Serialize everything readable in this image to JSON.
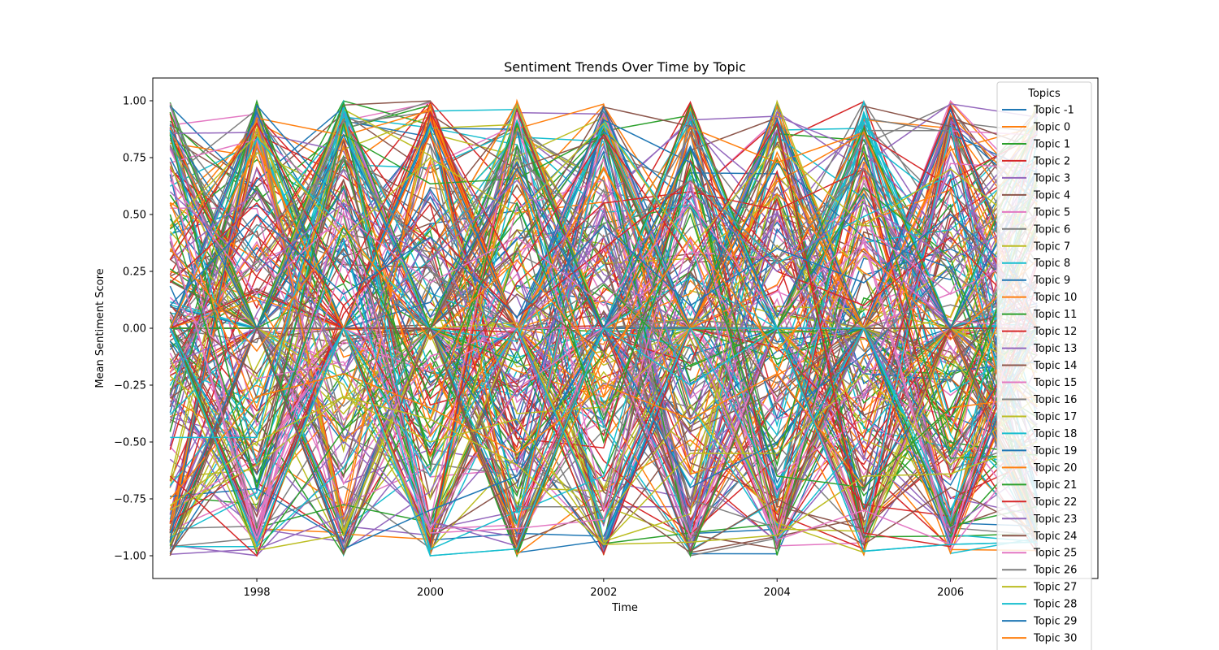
{
  "chart_data": {
    "type": "line",
    "title": "Sentiment Trends Over Time by Topic",
    "xlabel": "Time",
    "ylabel": "Mean Sentiment Score",
    "xlim": [
      1996.8,
      2007.7
    ],
    "ylim": [
      -1.1,
      1.1
    ],
    "x_ticks": [
      "1998",
      "2000",
      "2002",
      "2004",
      "2006"
    ],
    "y_ticks": [
      "1.00",
      "0.75",
      "0.50",
      "0.25",
      "0.00",
      "−0.25",
      "−0.50",
      "−0.75",
      "−1.00"
    ],
    "grid": false,
    "legend": {
      "title": "Topics",
      "placement": "top-right",
      "entries": [
        "Topic -1",
        "Topic 0",
        "Topic 1",
        "Topic 2",
        "Topic 3",
        "Topic 4",
        "Topic 5",
        "Topic 6",
        "Topic 7",
        "Topic 8",
        "Topic 9",
        "Topic 10",
        "Topic 11",
        "Topic 12",
        "Topic 13",
        "Topic 14",
        "Topic 15",
        "Topic 16",
        "Topic 17",
        "Topic 18",
        "Topic 19",
        "Topic 20",
        "Topic 21",
        "Topic 22",
        "Topic 23",
        "Topic 24",
        "Topic 25",
        "Topic 26",
        "Topic 27",
        "Topic 28",
        "Topic 29",
        "Topic 30"
      ]
    },
    "palette": [
      "#1f77b4",
      "#ff7f0e",
      "#2ca02c",
      "#d62728",
      "#9467bd",
      "#8c564b",
      "#e377c2",
      "#7f7f7f",
      "#bcbd22",
      "#17becf"
    ],
    "x": [
      1997,
      1998,
      1999,
      2000,
      2001,
      2002,
      2003,
      2004,
      2005,
      2006,
      2007
    ],
    "series": [
      {
        "name": "Topic -1",
        "values": [
          0.0,
          0.95,
          0.0,
          0.9,
          0.0,
          0.97,
          0.0,
          0.92,
          0.0,
          0.96,
          0.0
        ]
      },
      {
        "name": "Topic 0",
        "values": [
          0.55,
          -0.35,
          0.8,
          -0.4,
          0.7,
          -0.3,
          0.85,
          -0.2,
          0.75,
          -0.45,
          0.4
        ]
      },
      {
        "name": "Topic 1",
        "values": [
          0.95,
          0.0,
          0.99,
          0.0,
          0.9,
          0.0,
          0.98,
          0.0,
          0.88,
          0.0,
          0.92
        ]
      },
      {
        "name": "Topic 2",
        "values": [
          -0.65,
          -1.0,
          0.1,
          -0.55,
          0.2,
          0.55,
          0.6,
          0.52,
          0.7,
          -0.65,
          0.1
        ]
      },
      {
        "name": "Topic 3",
        "values": [
          0.3,
          0.6,
          -0.2,
          0.4,
          -0.3,
          0.5,
          -0.4,
          0.3,
          -0.2,
          0.45,
          0.1
        ]
      },
      {
        "name": "Topic 4",
        "values": [
          -1.0,
          0.0,
          -0.99,
          0.0,
          -0.95,
          0.0,
          -0.98,
          0.0,
          -0.92,
          0.0,
          -0.85
        ]
      },
      {
        "name": "Topic 5",
        "values": [
          0.7,
          -0.9,
          0.6,
          -0.85,
          0.95,
          -0.8,
          0.65,
          -0.9,
          0.4,
          -0.95,
          0.3
        ]
      },
      {
        "name": "Topic 6",
        "values": [
          0.9,
          0.4,
          0.75,
          0.3,
          0.8,
          0.2,
          0.85,
          0.35,
          0.7,
          0.25,
          0.6
        ]
      },
      {
        "name": "Topic 7",
        "values": [
          -0.8,
          -0.6,
          -0.3,
          -0.5,
          -0.4,
          -0.95,
          -0.55,
          -0.55,
          -0.2,
          -0.6,
          -0.3
        ]
      },
      {
        "name": "Topic 8",
        "values": [
          -0.48,
          -0.48,
          0.97,
          -1.0,
          -0.97,
          0.0,
          0.95,
          0.0,
          -0.98,
          -0.95,
          -0.94
        ]
      },
      {
        "name": "Topic 9",
        "values": [
          -0.9,
          0.0,
          -0.97,
          -0.8,
          -0.65,
          0.0,
          -0.7,
          -0.5,
          0.0,
          -0.95,
          0.1
        ]
      },
      {
        "name": "Topic 10",
        "values": [
          0.0,
          0.8,
          0.0,
          0.85,
          0.0,
          0.7,
          0.0,
          0.75,
          0.0,
          0.8,
          0.0
        ]
      },
      {
        "name": "Topic 11",
        "values": [
          0.85,
          -0.7,
          0.9,
          -0.6,
          0.8,
          -0.5,
          0.7,
          -0.6,
          0.8,
          -0.55,
          0.65
        ]
      },
      {
        "name": "Topic 12",
        "values": [
          0.2,
          0.55,
          0.1,
          0.45,
          0.05,
          0.35,
          0.65,
          0.25,
          0.1,
          0.4,
          0.0
        ]
      },
      {
        "name": "Topic 13",
        "values": [
          -0.3,
          0.7,
          -0.2,
          0.6,
          -0.1,
          0.8,
          -0.3,
          0.5,
          -0.2,
          0.7,
          -0.1
        ]
      },
      {
        "name": "Topic 14",
        "values": [
          0.1,
          -0.2,
          0.35,
          -0.25,
          0.15,
          -0.1,
          0.25,
          -0.3,
          0.05,
          -0.15,
          0.2
        ]
      },
      {
        "name": "Topic 15",
        "values": [
          0.65,
          0.15,
          0.5,
          0.2,
          0.4,
          0.1,
          0.55,
          0.05,
          0.45,
          0.15,
          0.35
        ]
      },
      {
        "name": "Topic 16",
        "values": [
          -0.15,
          0.3,
          -0.1,
          0.25,
          -0.05,
          0.2,
          -0.15,
          0.3,
          -0.1,
          0.25,
          -0.05
        ]
      },
      {
        "name": "Topic 17",
        "values": [
          0.45,
          0.85,
          0.4,
          0.75,
          0.5,
          0.9,
          0.35,
          0.8,
          0.45,
          0.7,
          0.4
        ]
      },
      {
        "name": "Topic 18",
        "values": [
          0.0,
          -0.75,
          0.0,
          -0.65,
          0.0,
          -0.85,
          0.0,
          -0.7,
          0.0,
          -0.8,
          0.0
        ]
      },
      {
        "name": "Topic 19",
        "values": [
          0.75,
          0.0,
          0.85,
          0.05,
          0.7,
          0.0,
          0.8,
          0.05,
          0.75,
          0.0,
          0.7
        ]
      },
      {
        "name": "Topic 20",
        "values": [
          -0.75,
          -0.3,
          -0.2,
          -0.35,
          -0.55,
          -0.25,
          -0.4,
          -0.2,
          -0.7,
          -0.35,
          -0.3
        ]
      },
      {
        "name": "Topic 21",
        "values": [
          0.5,
          -0.7,
          0.45,
          -0.3,
          0.55,
          -0.4,
          0.5,
          -0.65,
          -0.7,
          -0.35,
          0.45
        ]
      },
      {
        "name": "Topic 22",
        "values": [
          0.3,
          0.9,
          0.2,
          0.95,
          0.25,
          0.85,
          0.3,
          0.9,
          -0.9,
          -0.96,
          0.2
        ]
      },
      {
        "name": "Topic 23",
        "values": [
          0.6,
          0.25,
          0.55,
          0.3,
          0.65,
          0.2,
          0.6,
          0.25,
          0.55,
          0.3,
          0.5
        ]
      },
      {
        "name": "Topic 24",
        "values": [
          -0.97,
          0.0,
          -0.99,
          0.0,
          -0.98,
          0.0,
          -0.98,
          -0.75,
          -0.95,
          -0.7,
          -0.9
        ]
      },
      {
        "name": "Topic 25",
        "values": [
          0.4,
          -0.9,
          0.3,
          -0.9,
          -0.88,
          -0.84,
          0.4,
          -0.93,
          -0.8,
          -0.95,
          0.3
        ]
      },
      {
        "name": "Topic 26",
        "values": [
          0.8,
          0.3,
          0.7,
          0.35,
          0.75,
          0.4,
          0.65,
          0.3,
          0.7,
          0.35,
          0.6
        ]
      },
      {
        "name": "Topic 27",
        "values": [
          -0.78,
          -0.5,
          -0.3,
          -0.4,
          -0.6,
          -0.95,
          -0.94,
          -0.91,
          -0.65,
          -0.64,
          -0.5
        ]
      },
      {
        "name": "Topic 28",
        "values": [
          0.0,
          -0.95,
          0.0,
          -1.0,
          -0.97,
          0.0,
          -0.25,
          0.0,
          -0.98,
          -0.95,
          -0.94
        ]
      },
      {
        "name": "Topic 29",
        "values": [
          0.1,
          0.5,
          0.15,
          0.4,
          0.05,
          0.45,
          0.1,
          0.35,
          0.2,
          0.5,
          0.15
        ]
      },
      {
        "name": "Topic 30",
        "values": [
          0.35,
          -0.1,
          0.45,
          -0.05,
          0.3,
          -0.15,
          0.4,
          -0.1,
          0.35,
          -0.05,
          0.3
        ]
      }
    ]
  }
}
